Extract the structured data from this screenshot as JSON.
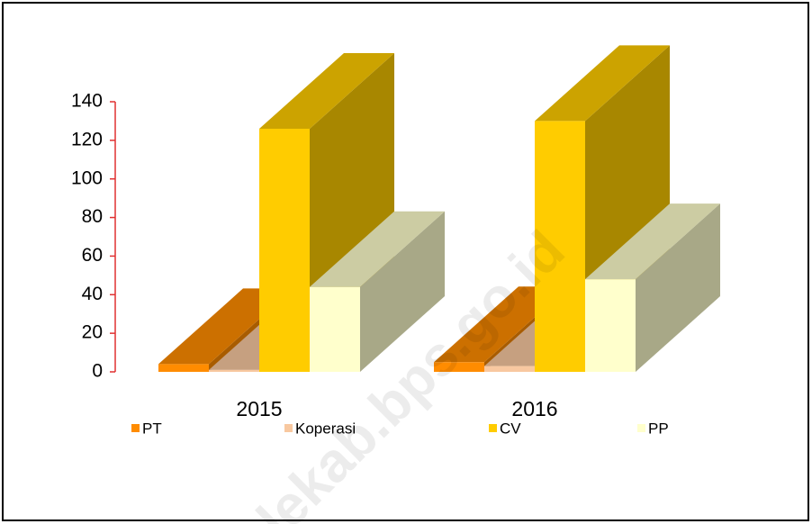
{
  "chart_data": {
    "type": "bar3d",
    "categories": [
      "2015",
      "2016"
    ],
    "series": [
      {
        "name": "PT",
        "color": "#ff8c00",
        "values": [
          4,
          5
        ]
      },
      {
        "name": "Koperasi",
        "color": "#f8c8a0",
        "values": [
          1,
          3
        ]
      },
      {
        "name": "CV",
        "color": "#ffcc00",
        "values": [
          126,
          130
        ]
      },
      {
        "name": "PP",
        "color": "#ffffcc",
        "values": [
          44,
          48
        ]
      }
    ],
    "ylim": [
      0,
      140
    ],
    "yticks": [
      0,
      20,
      40,
      60,
      80,
      100,
      120,
      140
    ],
    "axis_color": "#e03030",
    "legend": "bottom",
    "watermark": "lekab.bps.go.id"
  }
}
